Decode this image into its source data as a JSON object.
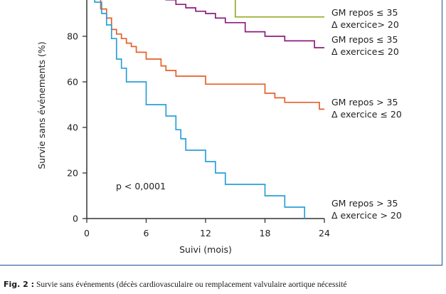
{
  "chart_data": {
    "type": "line",
    "step": true,
    "xlabel": "Suivi (mois)",
    "ylabel": "Survie sans événements (%)",
    "xlim": [
      0,
      24
    ],
    "ylim": [
      0,
      100
    ],
    "x_ticks": [
      "0",
      "6",
      "12",
      "18",
      "24"
    ],
    "y_ticks": [
      "0",
      "20",
      "40",
      "60",
      "80"
    ],
    "grid": false,
    "annotation": "p < 0,0001",
    "colors": {
      "green": "#9aaa2a",
      "purple": "#8b1e7e",
      "orange": "#e5602a",
      "blue": "#2aa0d8",
      "axis": "#333333",
      "frame": "#1e4f8f"
    },
    "series": [
      {
        "line1": "GM repos ≤ 35",
        "line2": "Δ exercice> 20",
        "color": "#9aaa2a",
        "x": [
          0,
          15,
          15,
          24
        ],
        "y": [
          100,
          100,
          88.5,
          88.5
        ]
      },
      {
        "line1": "GM repos ≤ 35",
        "line2": "Δ exercice≤ 20",
        "color": "#8b1e7e",
        "x": [
          0.9,
          6,
          7,
          8,
          9,
          10,
          11,
          12,
          13,
          14,
          15,
          16,
          18,
          19,
          20,
          22,
          23,
          24
        ],
        "y": [
          100,
          100,
          98,
          96,
          94,
          92.5,
          91,
          90,
          88,
          86,
          86,
          82,
          80,
          80,
          78,
          78,
          75,
          75
        ]
      },
      {
        "line1": "GM repos > 35",
        "line2": "Δ exercice ≤ 20",
        "color": "#e5602a",
        "x": [
          0.7,
          1.4,
          2,
          2.5,
          3,
          3.5,
          4,
          4.5,
          5,
          6,
          7.5,
          8,
          9,
          12,
          14,
          18,
          19,
          20,
          23.5,
          24
        ],
        "y": [
          100,
          92,
          88,
          83,
          81,
          79,
          77,
          75.5,
          73,
          70,
          67,
          65,
          62.5,
          59,
          59,
          55,
          53,
          51,
          48,
          48
        ]
      },
      {
        "line1": "GM repos > 35",
        "line2": "Δ exercice > 20",
        "color": "#2aa0d8",
        "x": [
          0.4,
          0.8,
          1.5,
          2,
          2.5,
          3,
          3.5,
          4,
          6,
          8,
          9,
          9.5,
          10,
          12,
          13,
          14,
          18,
          20,
          22
        ],
        "y": [
          97,
          95,
          90,
          85,
          79,
          70,
          66,
          60,
          50,
          45,
          39,
          35,
          30,
          25,
          20,
          15,
          10,
          5,
          0
        ]
      }
    ]
  },
  "caption": {
    "fig_label": "Fig. 2 :",
    "text": "Survie sans événements (décès cardiovasculaire ou remplacement valvulaire aortique nécessité"
  }
}
